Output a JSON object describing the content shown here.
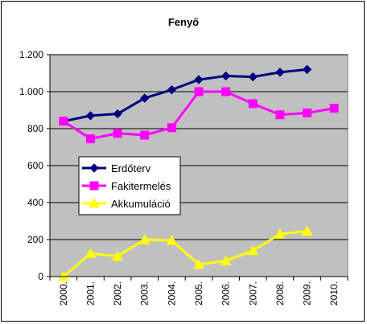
{
  "chart_data": {
    "type": "line",
    "title": "Fenyő",
    "xlabel": "",
    "ylabel": "",
    "categories": [
      "2000.",
      "2001.",
      "2002.",
      "2003.",
      "2004.",
      "2005.",
      "2006.",
      "2007.",
      "2008.",
      "2009.",
      "2010."
    ],
    "ylim": [
      0,
      1200
    ],
    "yticks": [
      0,
      200,
      400,
      600,
      800,
      1000,
      1200
    ],
    "ytick_labels": [
      "0",
      "200",
      "400",
      "600",
      "800",
      "1.000",
      "1.200"
    ],
    "grid": true,
    "legend_position": "left-center",
    "plot_background": "#c0c0c0",
    "series": [
      {
        "name": "Erdőterv",
        "color": "#000080",
        "marker": "diamond",
        "values": [
          840,
          870,
          880,
          965,
          1010,
          1065,
          1085,
          1080,
          1105,
          1120,
          null
        ]
      },
      {
        "name": "Fakitermelés",
        "color": "#ff00ff",
        "marker": "square",
        "values": [
          840,
          745,
          775,
          765,
          805,
          1000,
          1000,
          935,
          875,
          885,
          910
        ]
      },
      {
        "name": "Akkumuláció",
        "color": "#ffff00",
        "marker": "triangle",
        "values": [
          0,
          125,
          110,
          200,
          195,
          65,
          85,
          140,
          230,
          245,
          null
        ]
      }
    ]
  }
}
